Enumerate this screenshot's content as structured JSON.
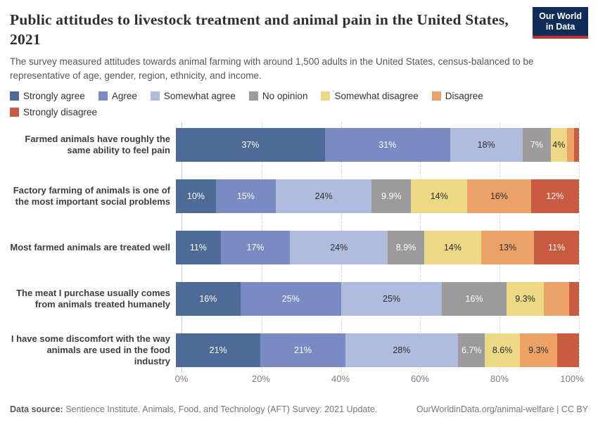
{
  "header": {
    "title": "Public attitudes to livestock treatment and animal pain in the United States, 2021",
    "subtitle": "The survey measured attitudes towards animal farming with around 1,500 adults in the United States, census-balanced to be representative of age, gender, region, ethnicity, and income.",
    "logo": {
      "line1": "Our World",
      "line2": "in Data",
      "bg": "#102d59",
      "accent": "#c5332b",
      "text_color": "#ffffff"
    }
  },
  "chart_data": {
    "type": "bar",
    "orientation": "horizontal",
    "stacked": true,
    "normalized_to_100": true,
    "grid": "dashed-vertical",
    "legend_position": "top",
    "xlim": [
      0,
      100
    ],
    "x_ticks": [
      "0%",
      "20%",
      "40%",
      "60%",
      "80%",
      "100%"
    ],
    "categories": [
      "Farmed animals have roughly the same ability to feel pain",
      "Factory farming of animals is one of the most important social problems",
      "Most farmed animals are treated well",
      "The meat I purchase usually comes from animals treated humanely",
      "I have some discomfort with the way animals are used in the food industry"
    ],
    "series": [
      {
        "name": "Strongly agree",
        "color": "#4d6b96",
        "label_color": "#ffffff",
        "values": [
          37,
          10,
          11,
          16,
          21
        ],
        "labels": [
          "37%",
          "10%",
          "11%",
          "16%",
          "21%"
        ]
      },
      {
        "name": "Agree",
        "color": "#7b8ac2",
        "label_color": "#ffffff",
        "values": [
          31,
          15,
          17,
          25,
          21
        ],
        "labels": [
          "31%",
          "15%",
          "17%",
          "25%",
          "21%"
        ]
      },
      {
        "name": "Somewhat agree",
        "color": "#afbcde",
        "label_color": "#2d2d2d",
        "values": [
          18,
          24,
          24,
          25,
          28
        ],
        "labels": [
          "18%",
          "24%",
          "24%",
          "25%",
          "28%"
        ]
      },
      {
        "name": "No opinion",
        "color": "#9b9b9b",
        "label_color": "#ffffff",
        "values": [
          7,
          9.9,
          8.9,
          16,
          6.7
        ],
        "labels": [
          "7%",
          "9.9%",
          "8.9%",
          "16%",
          "6.7%"
        ]
      },
      {
        "name": "Somewhat disagree",
        "color": "#edd985",
        "label_color": "#2d2d2d",
        "values": [
          4,
          14,
          14,
          9.3,
          8.6
        ],
        "labels": [
          "4%",
          "14%",
          "14%",
          "9.3%",
          "8.6%"
        ]
      },
      {
        "name": "Disagree",
        "color": "#eca266",
        "label_color": "#2d2d2d",
        "values": [
          1.8,
          16,
          13,
          6.2,
          9.3
        ],
        "labels": [
          "",
          "16%",
          "13%",
          "",
          "9.3%"
        ]
      },
      {
        "name": "Strongly disagree",
        "color": "#c95b40",
        "label_color": "#ffffff",
        "values": [
          1.2,
          12,
          11,
          2.5,
          5.4
        ],
        "labels": [
          "",
          "12%",
          "11%",
          "",
          ""
        ]
      }
    ]
  },
  "footer": {
    "source_label": "Data source:",
    "source_text": " Sentience Institute. Animals, Food, and Technology (AFT) Survey: 2021 Update.",
    "right_text": "OurWorldinData.org/animal-welfare | CC BY"
  }
}
